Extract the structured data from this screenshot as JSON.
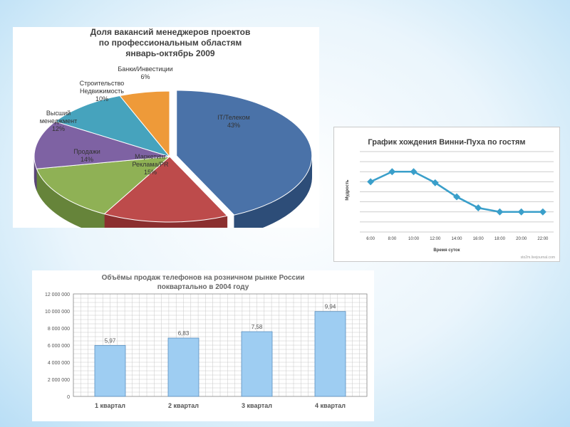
{
  "pie_chart": {
    "title_lines": [
      "Доля вакансий менеджеров проектов",
      "по профессиональным областям",
      "январь-октябрь 2009"
    ],
    "slices": [
      {
        "label_lines": [
          "IT/Телеком"
        ],
        "pct_label": "43%",
        "value": 43,
        "color": "#4a72a8",
        "side": "#2d4d78"
      },
      {
        "label_lines": [
          "Маркетинг",
          "Реклама/PR"
        ],
        "pct_label": "15%",
        "value": 15,
        "color": "#bd4b4b",
        "side": "#8b2f2f"
      },
      {
        "label_lines": [
          "Продажи"
        ],
        "pct_label": "14%",
        "value": 14,
        "color": "#8fb155",
        "side": "#66843a"
      },
      {
        "label_lines": [
          "Высший",
          "менеджмент"
        ],
        "pct_label": "12%",
        "value": 12,
        "color": "#7e62a3",
        "side": "#5a4478"
      },
      {
        "label_lines": [
          "Строительство",
          "Недвижимость"
        ],
        "pct_label": "10%",
        "value": 10,
        "color": "#46a3bd",
        "side": "#2f7a8e"
      },
      {
        "label_lines": [
          "Банки/Инвестиции"
        ],
        "pct_label": "6%",
        "value": 6,
        "color": "#ee9a39",
        "side": "#b8731f"
      }
    ]
  },
  "line_chart": {
    "title": "График хождения Винни-Пуха по гостям",
    "ylabel": "Мудрость",
    "xlabel": "Время суток",
    "watermark": "sto2m.livejournal.com",
    "line_color": "#3a9fca"
  },
  "bar_chart": {
    "title_lines": [
      "Объёмы продаж телефонов на розничном рынке России",
      "поквартально в 2004 году"
    ],
    "bar_color": "#9ecdf2"
  },
  "chart_data": [
    {
      "type": "pie",
      "title": "Доля вакансий менеджеров проектов по профессиональным областям январь-октябрь 2009",
      "categories": [
        "IT/Телеком",
        "Маркетинг Реклама/PR",
        "Продажи",
        "Высший менеджмент",
        "Строительство Недвижимость",
        "Банки/Инвестиции"
      ],
      "values": [
        43,
        15,
        14,
        12,
        10,
        6
      ],
      "unit": "%"
    },
    {
      "type": "line",
      "title": "График хождения Винни-Пуха по гостям",
      "xlabel": "Время суток",
      "ylabel": "Мудрость",
      "x": [
        "6:00",
        "8:00",
        "10:00",
        "12:00",
        "14:00",
        "16:00",
        "18:00",
        "20:00",
        "22:00"
      ],
      "values": [
        5,
        6,
        6,
        4.9,
        3.5,
        2.4,
        2,
        2,
        2
      ],
      "ylim": [
        0,
        8
      ],
      "grid": true,
      "y_tick_labels_shown": false
    },
    {
      "type": "bar",
      "title": "Объёмы продаж телефонов на розничном рынке России поквартально в 2004 году",
      "categories": [
        "1 квартал",
        "2 квартал",
        "3 квартал",
        "4 квартал"
      ],
      "values": [
        5970000,
        6830000,
        7580000,
        9940000
      ],
      "data_labels": [
        "5,97",
        "6,83",
        "7,58",
        "9,94"
      ],
      "ylim": [
        0,
        12000000
      ],
      "y_ticks": [
        "0",
        "2 000 000",
        "4 000 000",
        "6 000 000",
        "8 000 000",
        "10 000 000",
        "12 000 000"
      ],
      "grid": true
    }
  ]
}
